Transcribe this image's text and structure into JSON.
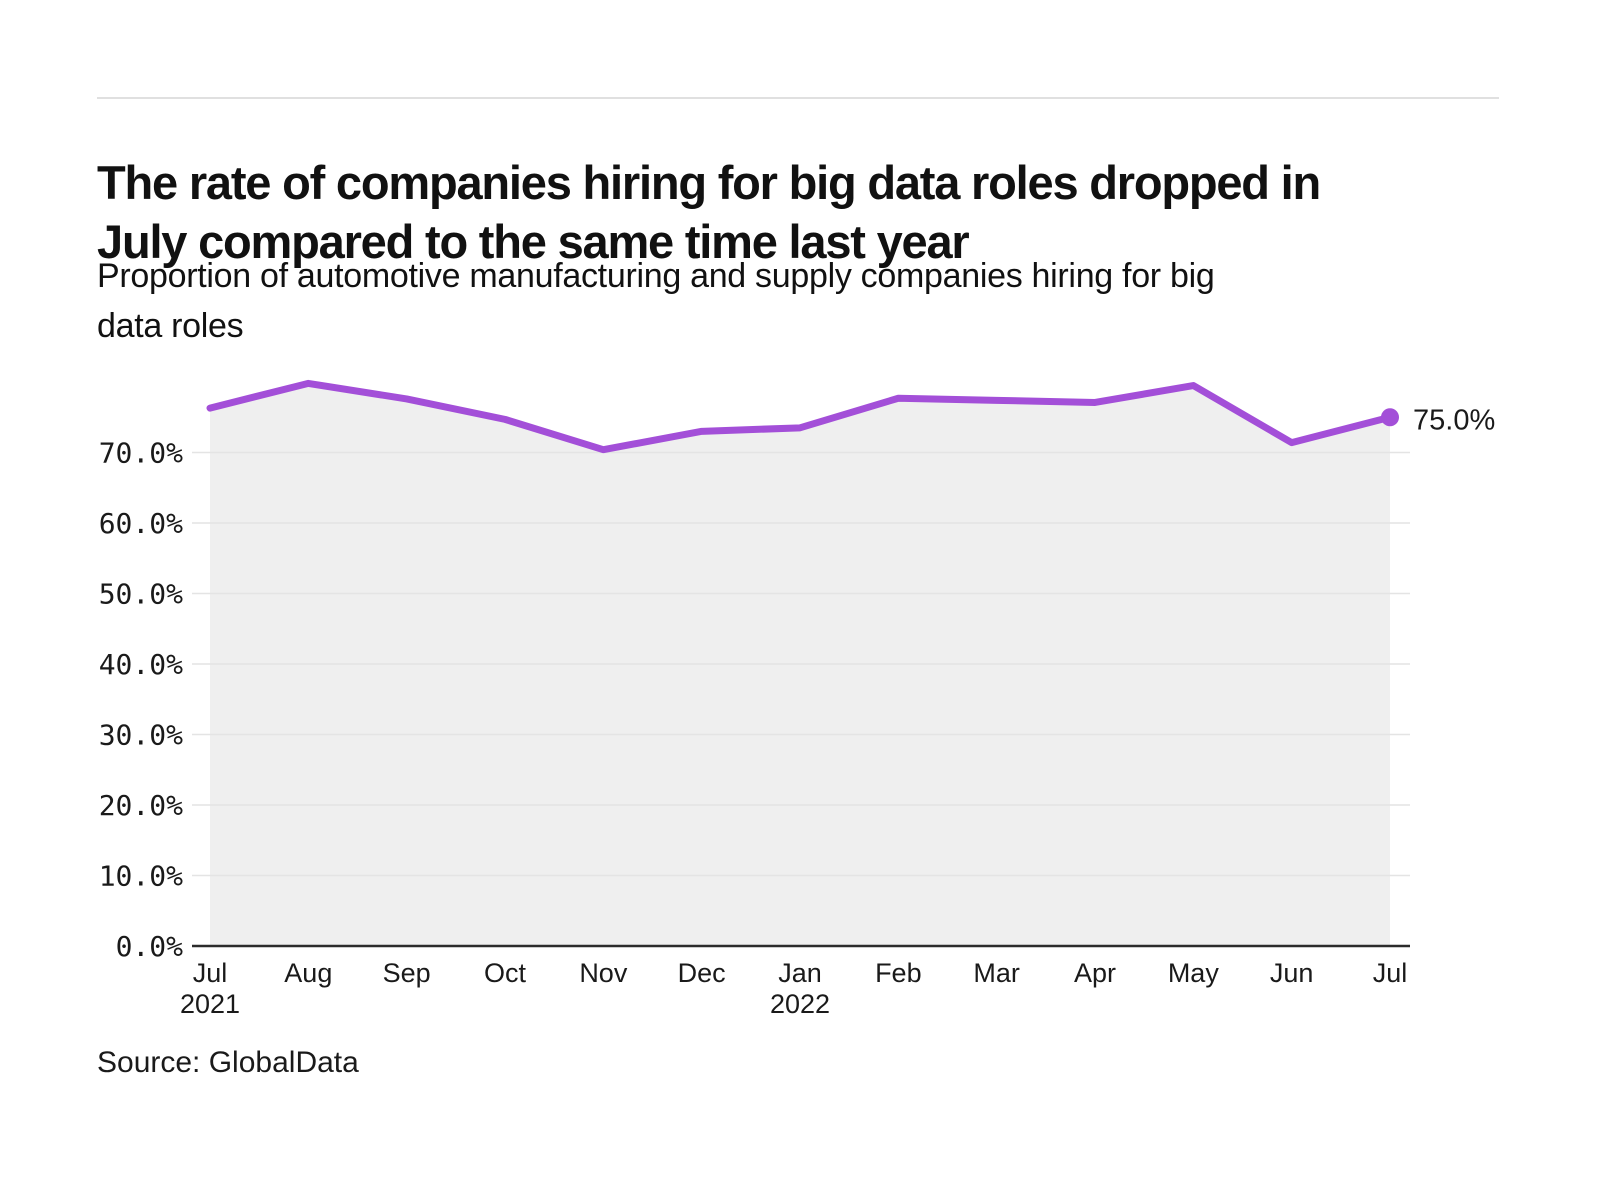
{
  "page": {
    "title_lines": [
      "The rate of companies hiring for big data roles dropped in",
      "July compared to the same time last year"
    ],
    "subtitle_lines": [
      "Proportion of automotive manufacturing and supply companies hiring for big",
      "data roles"
    ],
    "source": "Source: GlobalData"
  },
  "chart_data": {
    "type": "line",
    "title": "The rate of companies hiring for big data roles dropped in July compared to the same time last year",
    "subtitle": "Proportion of automotive manufacturing and supply companies hiring for big data roles",
    "xlabel": "",
    "ylabel": "",
    "categories": [
      "Jul",
      "Aug",
      "Sep",
      "Oct",
      "Nov",
      "Dec",
      "Jan",
      "Feb",
      "Mar",
      "Apr",
      "May",
      "Jun",
      "Jul"
    ],
    "year_markers": [
      {
        "index": 0,
        "label": "2021"
      },
      {
        "index": 6,
        "label": "2022"
      }
    ],
    "series": [
      {
        "name": "Proportion of automotive manufacturing and supply companies hiring for big data roles",
        "values": [
          76.3,
          79.8,
          77.6,
          74.7,
          70.4,
          73.0,
          73.5,
          77.7,
          77.4,
          77.1,
          79.5,
          71.4,
          75.0
        ]
      }
    ],
    "y_tick_values": [
      0,
      10,
      20,
      30,
      40,
      50,
      60,
      70
    ],
    "y_tick_labels": [
      "0.0%",
      "10.0%",
      "20.0%",
      "30.0%",
      "40.0%",
      "50.0%",
      "60.0%",
      "70.0%"
    ],
    "ylim": [
      0,
      80
    ],
    "grid": true,
    "legend": "none",
    "end_label": "75.0%",
    "colors": {
      "line": "#a34fd8",
      "area": "#efefef",
      "grid": "#e4e4e4",
      "axis": "#2b2b2b",
      "text": "#1a1a1a"
    }
  }
}
